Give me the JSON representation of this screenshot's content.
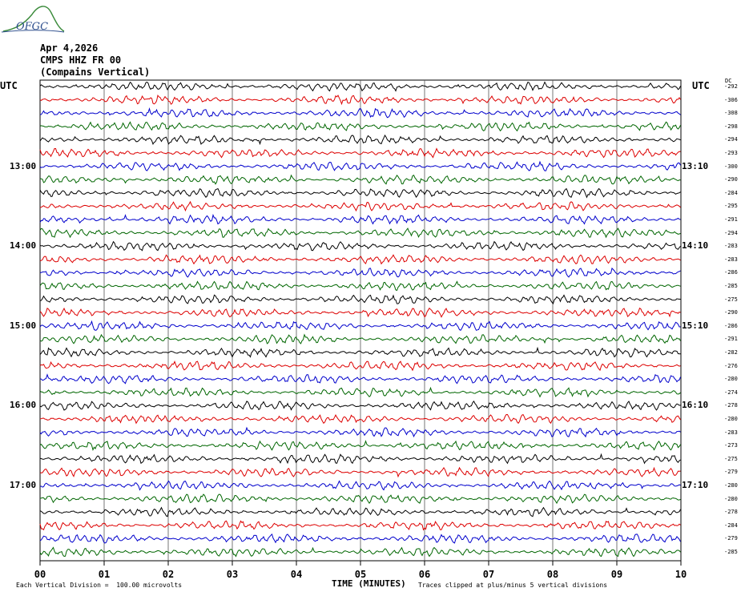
{
  "logo": {
    "text": "OFGC"
  },
  "header": {
    "date": "Apr 4,2026",
    "station": "CMPS HHZ FR 00",
    "location": "(Compains Vertical)"
  },
  "utc_left": "UTC",
  "utc_right": "UTC",
  "dc_label": "DC",
  "left_times": [
    "13:00",
    "14:00",
    "15:00",
    "16:00",
    "17:00"
  ],
  "right_times": [
    "13:10",
    "14:10",
    "15:10",
    "16:10",
    "17:10"
  ],
  "dc_offsets": [
    "-292",
    "-306",
    "-308",
    "-298",
    "-294",
    "-293",
    "-300",
    "-290",
    "-284",
    "-295",
    "-291",
    "-294",
    "-283",
    "-283",
    "-286",
    "-285",
    "-275",
    "-290",
    "-286",
    "-291",
    "-282",
    "-276",
    "-280",
    "-274",
    "-278",
    "-280",
    "-283",
    "-273",
    "-275",
    "-279",
    "-280",
    "-280",
    "-278",
    "-284",
    "-279",
    "-285"
  ],
  "footer": {
    "left": "Each Vertical Division =  100.00 microvolts",
    "xlabel": "TIME (MINUTES)",
    "right": "Traces clipped at plus/minus 5 vertical divisions"
  },
  "colors": {
    "black": "#000000",
    "red": "#dd0000",
    "blue": "#0000cc",
    "green": "#006600",
    "grid": "#555555",
    "logo": "#2c4d8c",
    "logo_curve": "#3a8a3a"
  },
  "chart_data": {
    "type": "line",
    "title": "",
    "xlabel": "TIME (MINUTES)",
    "ylabel": "",
    "x_ticks": [
      "00",
      "01",
      "02",
      "03",
      "04",
      "05",
      "06",
      "07",
      "08",
      "09",
      "10"
    ],
    "xlim": [
      0,
      10
    ],
    "trace_count": 36,
    "trace_color_cycle": [
      "black",
      "red",
      "blue",
      "green"
    ],
    "trace_interval_minutes": 10,
    "grid": true
  }
}
